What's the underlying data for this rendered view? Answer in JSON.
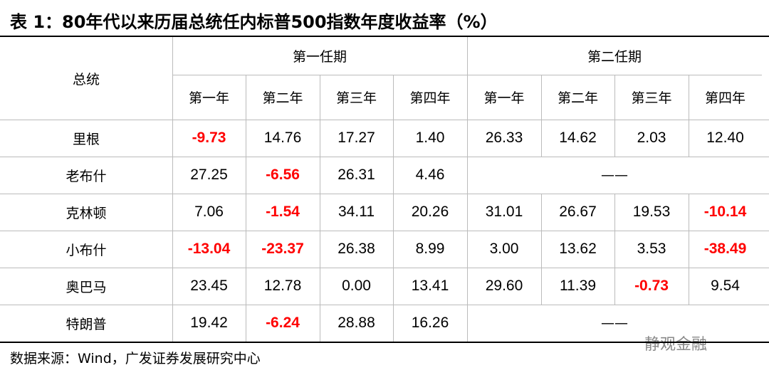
{
  "title": "表 1：80年代以来历届总统任内标普500指数年度收益率（%）",
  "table": {
    "corner": "总统",
    "groups": [
      "第一任期",
      "第二任期"
    ],
    "columns": [
      "第一年",
      "第二年",
      "第三年",
      "第四年",
      "第一年",
      "第二年",
      "第三年",
      "第四年"
    ],
    "rows": [
      {
        "name": "里根",
        "first_term": [
          "-9.73",
          "14.76",
          "17.27",
          "1.40"
        ],
        "second_term": [
          "26.33",
          "14.62",
          "2.03",
          "12.40"
        ]
      },
      {
        "name": "老布什",
        "first_term": [
          "27.25",
          "-6.56",
          "26.31",
          "4.46"
        ],
        "second_term": "——"
      },
      {
        "name": "克林顿",
        "first_term": [
          "7.06",
          "-1.54",
          "34.11",
          "20.26"
        ],
        "second_term": [
          "31.01",
          "26.67",
          "19.53",
          "-10.14"
        ]
      },
      {
        "name": "小布什",
        "first_term": [
          "-13.04",
          "-23.37",
          "26.38",
          "8.99"
        ],
        "second_term": [
          "3.00",
          "13.62",
          "3.53",
          "-38.49"
        ]
      },
      {
        "name": "奥巴马",
        "first_term": [
          "23.45",
          "12.78",
          "0.00",
          "13.41"
        ],
        "second_term": [
          "29.60",
          "11.39",
          "-0.73",
          "9.54"
        ]
      },
      {
        "name": "特朗普",
        "first_term": [
          "19.42",
          "-6.24",
          "28.88",
          "16.26"
        ],
        "second_term": "——"
      }
    ]
  },
  "source": "数据来源：Wind，广发证券发展研究中心",
  "watermark": "静观金融"
}
